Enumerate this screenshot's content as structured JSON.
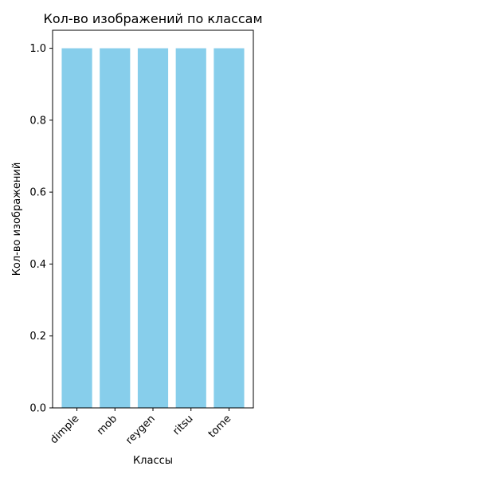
{
  "chart_data": {
    "type": "bar",
    "title": "Кол-во изображений по классам",
    "xlabel": "Классы",
    "ylabel": "Кол-во изображений",
    "categories": [
      "dimple",
      "mob",
      "reygen",
      "ritsu",
      "tome"
    ],
    "values": [
      1,
      1,
      1,
      1,
      1
    ],
    "ylim": [
      0,
      1.05
    ],
    "yticks": [
      "0.0",
      "0.2",
      "0.4",
      "0.6",
      "0.8",
      "1.0"
    ],
    "bar_color": "#87CEEB",
    "grid": false,
    "legend": "none"
  }
}
